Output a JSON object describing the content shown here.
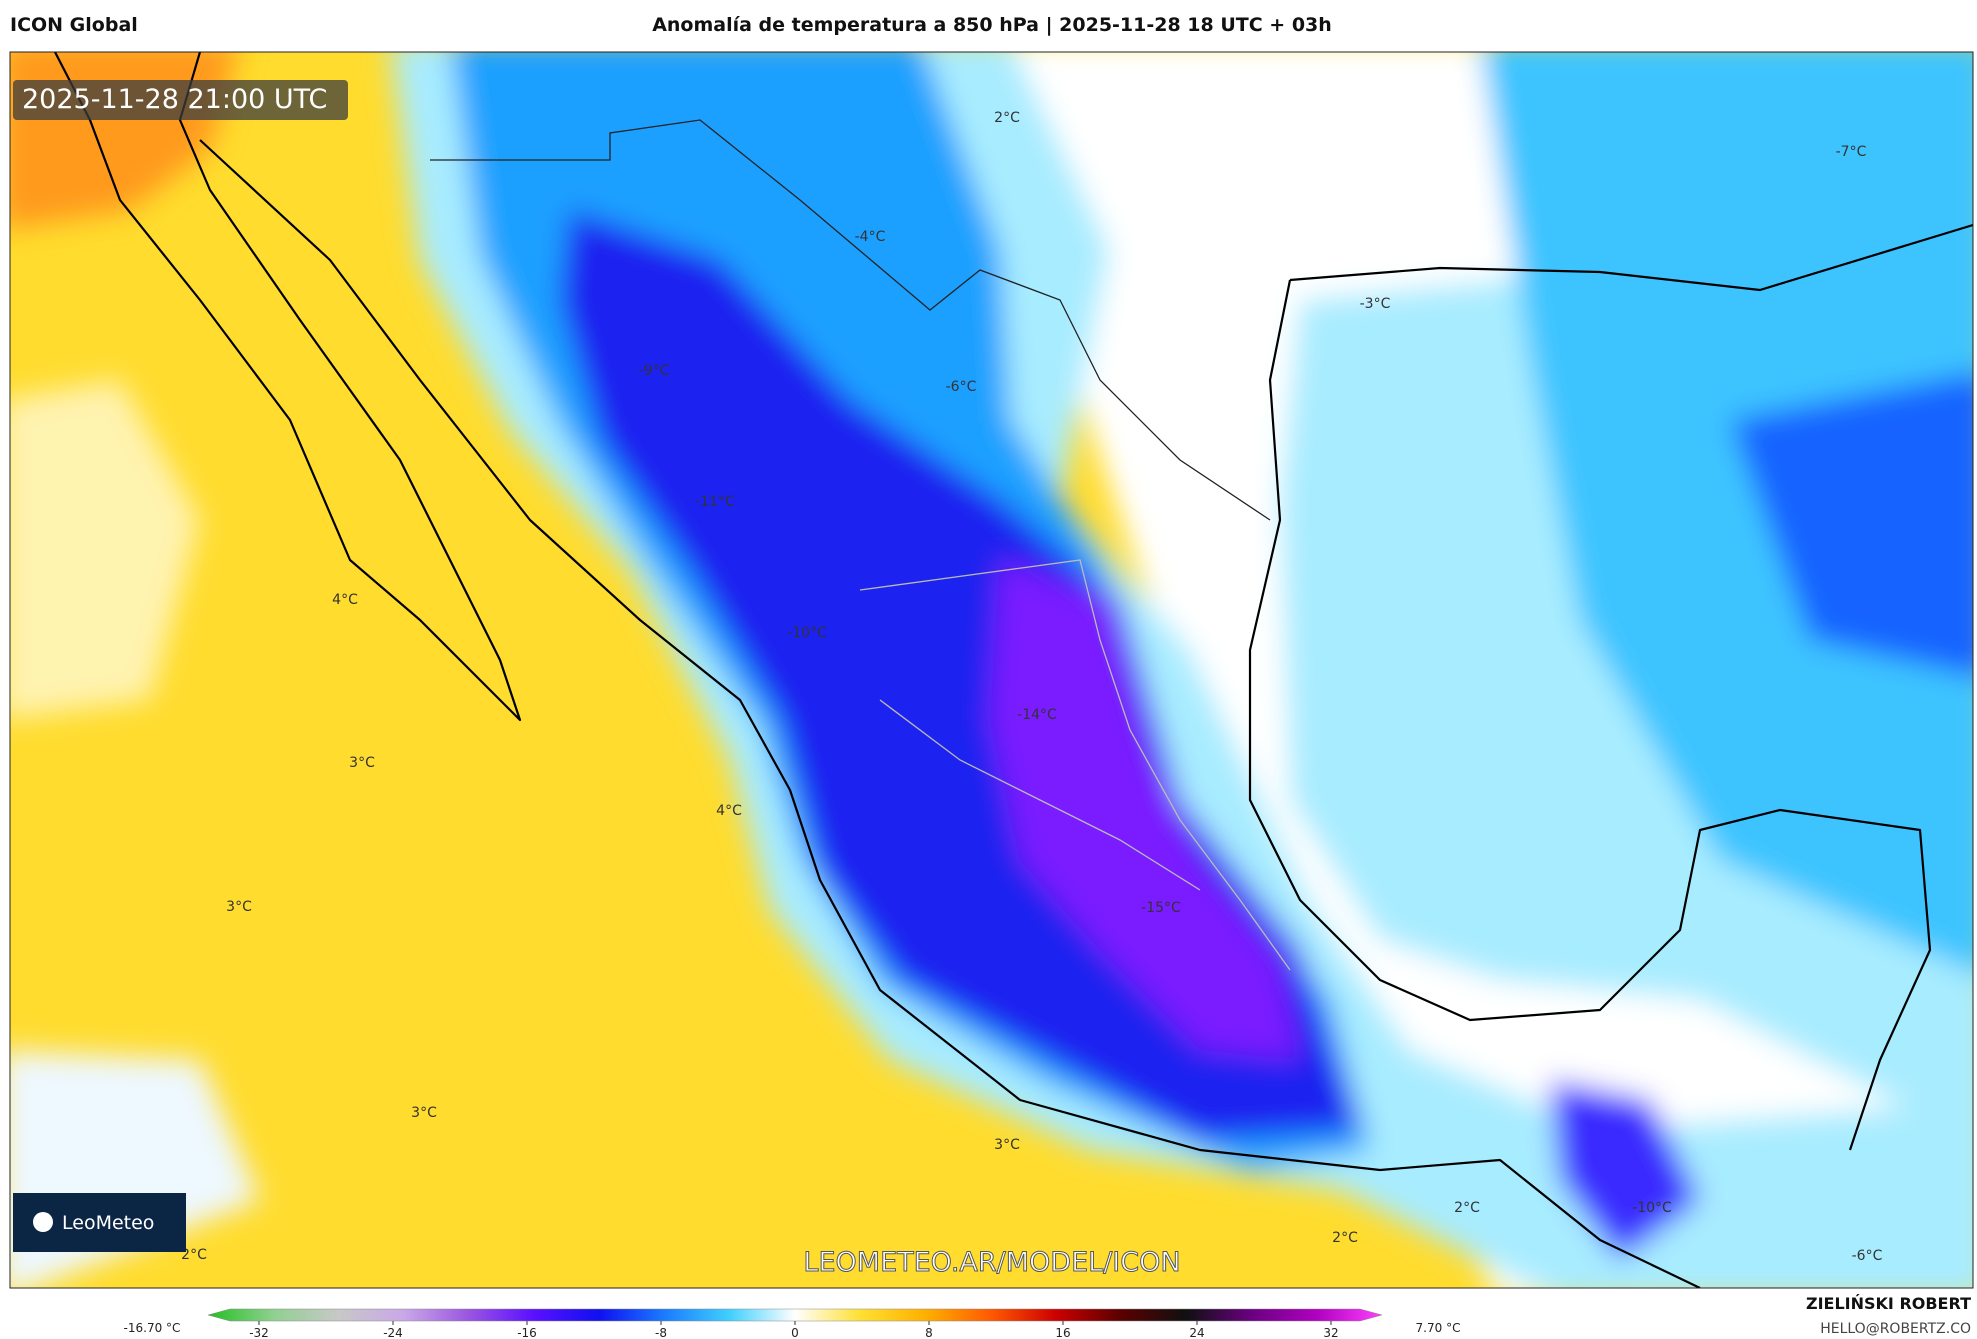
{
  "header": {
    "model": "ICON Global",
    "title": "Anomalía de temperatura a 850 hPa | 2025-11-28 18 UTC + 03h"
  },
  "map": {
    "valid_time": "2025-11-28 21:00 UTC",
    "logo": "LeoMeteo",
    "watermark": "LEOMETEO.AR/MODEL/ICON",
    "contour_labels": [
      "2°C",
      "-7°C",
      "-4°C",
      "-3°C",
      "-9°C",
      "-6°C",
      "-11°C",
      "4°C",
      "-10°C",
      "-14°C",
      "3°C",
      "4°C",
      "3°C",
      "-15°C",
      "3°C",
      "3°C",
      "2°C",
      "2°C",
      "2°C",
      "-10°C",
      "-6°C"
    ]
  },
  "colorbar": {
    "min_label": "-16.70 °C",
    "max_label": "7.70 °C",
    "ticks": [
      -32,
      -24,
      -16,
      -8,
      0,
      8,
      16,
      24,
      32
    ],
    "colors": [
      "#22c022",
      "#8fd08f",
      "#c8c8c8",
      "#c9a8e8",
      "#9a55e0",
      "#5a10ff",
      "#1010f0",
      "#1a7cff",
      "#40d0ff",
      "#ffffff",
      "#ffe033",
      "#ffb000",
      "#ff5a00",
      "#cc0000",
      "#5a0000",
      "#101010",
      "#6a0080",
      "#b000c0",
      "#ff40ff"
    ]
  },
  "footer": {
    "author": "ZIELIŃSKI ROBERT",
    "email": "HELLO@ROBERTZ.CO"
  }
}
